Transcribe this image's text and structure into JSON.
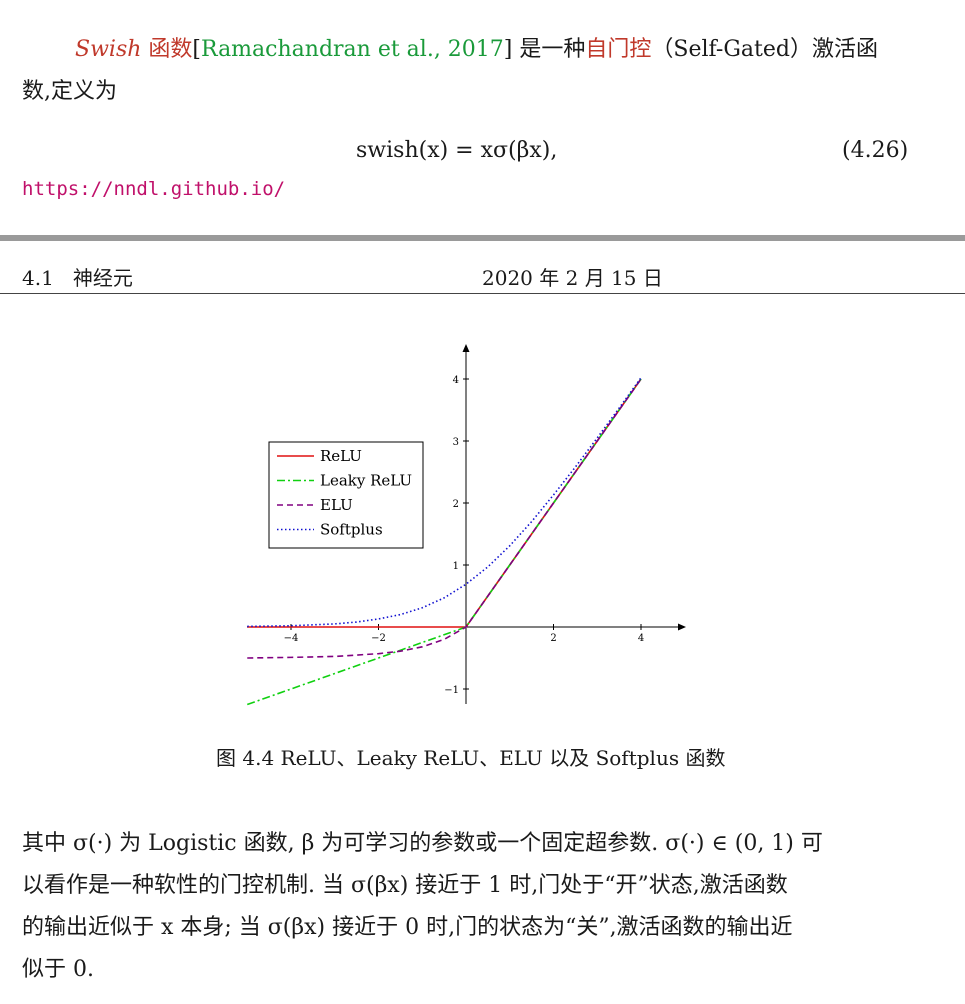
{
  "intro": {
    "term": "Swish",
    "term_suffix": " 函数",
    "cite_open": "[",
    "cite_text": "Ramachandran et al., 2017",
    "cite_close": "]",
    "middle": " 是一种",
    "highlight": "自门控",
    "after": "（Self-Gated）激活函",
    "line2": "数,定义为"
  },
  "equation": {
    "formula": "swish(x) = xσ(βx),",
    "number": "(4.26)"
  },
  "footer_url": "https://nndl.github.io/",
  "running_header": {
    "section": "4.1   神经元",
    "date": "2020 年 2 月 15 日"
  },
  "chart_data": {
    "type": "line",
    "xlim": [
      -5,
      5
    ],
    "ylim": [
      -1.2,
      4.6
    ],
    "xticks": [
      -4,
      -2,
      2,
      4
    ],
    "yticks": [
      -1,
      1,
      2,
      3,
      4
    ],
    "legend_position": "upper-left",
    "series": [
      {
        "name": "ReLU",
        "color": "#e01010",
        "style": "solid",
        "x": [
          -5,
          -4,
          -3,
          -2,
          -1,
          0,
          1,
          2,
          3,
          4
        ],
        "y": [
          0,
          0,
          0,
          0,
          0,
          0,
          1,
          2,
          3,
          4
        ]
      },
      {
        "name": "Leaky ReLU",
        "color": "#10d010",
        "style": "dashdot",
        "x": [
          -5,
          -4,
          -3,
          -2,
          -1,
          0,
          1,
          2,
          3,
          4
        ],
        "y": [
          -1.25,
          -1,
          -0.75,
          -0.5,
          -0.25,
          0,
          1,
          2,
          3,
          4
        ]
      },
      {
        "name": "ELU",
        "color": "#800080",
        "style": "dashed",
        "x": [
          -5,
          -4,
          -3,
          -2,
          -1.5,
          -1,
          -0.5,
          0,
          1,
          2,
          3,
          4
        ],
        "y": [
          -0.5,
          -0.49,
          -0.475,
          -0.43,
          -0.39,
          -0.32,
          -0.2,
          0,
          1,
          2,
          3,
          4
        ]
      },
      {
        "name": "Softplus",
        "color": "#1010d0",
        "style": "dotted",
        "x": [
          -5,
          -4,
          -3,
          -2.5,
          -2,
          -1.5,
          -1,
          -0.5,
          0,
          0.5,
          1,
          1.5,
          2,
          2.5,
          3,
          3.5,
          4
        ],
        "y": [
          0.01,
          0.02,
          0.05,
          0.08,
          0.13,
          0.2,
          0.31,
          0.47,
          0.69,
          0.97,
          1.31,
          1.7,
          2.13,
          2.58,
          3.05,
          3.53,
          4.02
        ]
      }
    ]
  },
  "figure_caption": "图 4.4 ReLU、Leaky ReLU、ELU 以及 Softplus 函数",
  "body": {
    "line1": "其中 σ(·) 为 Logistic 函数, β 为可学习的参数或一个固定超参数. σ(·) ∈ (0, 1) 可",
    "line2": "以看作是一种软性的门控机制. 当 σ(βx) 接近于 1 时,门处于“开”状态,激活函数",
    "line3": "的输出近似于 x 本身; 当 σ(βx) 接近于 0 时,门的状态为“关”,激活函数的输出近",
    "line4": "似于 0."
  }
}
